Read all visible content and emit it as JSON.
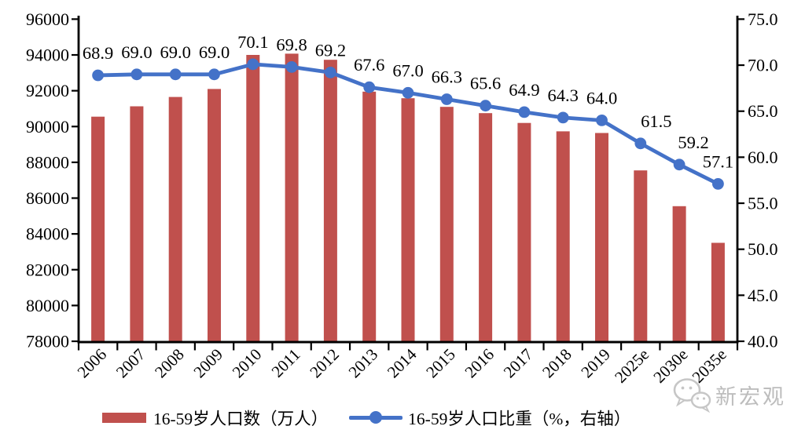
{
  "chart_data": {
    "type": "bar+line",
    "title": "",
    "categories": [
      "2006",
      "2007",
      "2008",
      "2009",
      "2010",
      "2011",
      "2012",
      "2013",
      "2014",
      "2015",
      "2016",
      "2017",
      "2018",
      "2019",
      "2025e",
      "2030e",
      "2035e"
    ],
    "series": [
      {
        "name": "16-59岁人口数（万人）",
        "type": "bar",
        "axis": "left",
        "color": "#C0504D",
        "values": [
          90550,
          91130,
          91650,
          92100,
          94000,
          94070,
          93730,
          91950,
          91580,
          91100,
          90750,
          90200,
          89730,
          89640,
          87550,
          85550,
          83500
        ]
      },
      {
        "name": "16-59岁人口比重（%，右轴）",
        "type": "line",
        "axis": "right",
        "color": "#4472C8",
        "values": [
          68.9,
          69.0,
          69.0,
          69.0,
          70.1,
          69.8,
          69.2,
          67.6,
          67.0,
          66.3,
          65.6,
          64.9,
          64.3,
          64.0,
          61.5,
          59.2,
          57.1
        ],
        "point_labels": [
          "68.9",
          "69.0",
          "69.0",
          "69.0",
          "70.1",
          "69.8",
          "69.2",
          "67.6",
          "67.0",
          "66.3",
          "65.6",
          "64.9",
          "64.3",
          "64.0",
          "61.5",
          "59.2",
          "57.1"
        ]
      }
    ],
    "left_axis": {
      "min": 78000,
      "max": 96000,
      "tick_values": [
        96000,
        94000,
        92000,
        90000,
        88000,
        86000,
        84000,
        82000,
        80000,
        78000
      ],
      "tick_labels": [
        "96000",
        "94000",
        "92000",
        "90000",
        "88000",
        "86000",
        "84000",
        "82000",
        "80000",
        "78000"
      ]
    },
    "right_axis": {
      "min": 40.0,
      "max": 75.0,
      "tick_values": [
        75.0,
        70.0,
        65.0,
        60.0,
        55.0,
        50.0,
        45.0,
        40.0
      ],
      "tick_labels": [
        "75.0",
        "70.0",
        "65.0",
        "60.0",
        "55.0",
        "50.0",
        "45.0",
        "40.0"
      ]
    },
    "grid": false,
    "legend_position": "bottom",
    "axis_color": "#000000"
  },
  "watermark": {
    "text": "新宏观",
    "icon": "wechat-icon",
    "color": "#bdbdbd"
  }
}
